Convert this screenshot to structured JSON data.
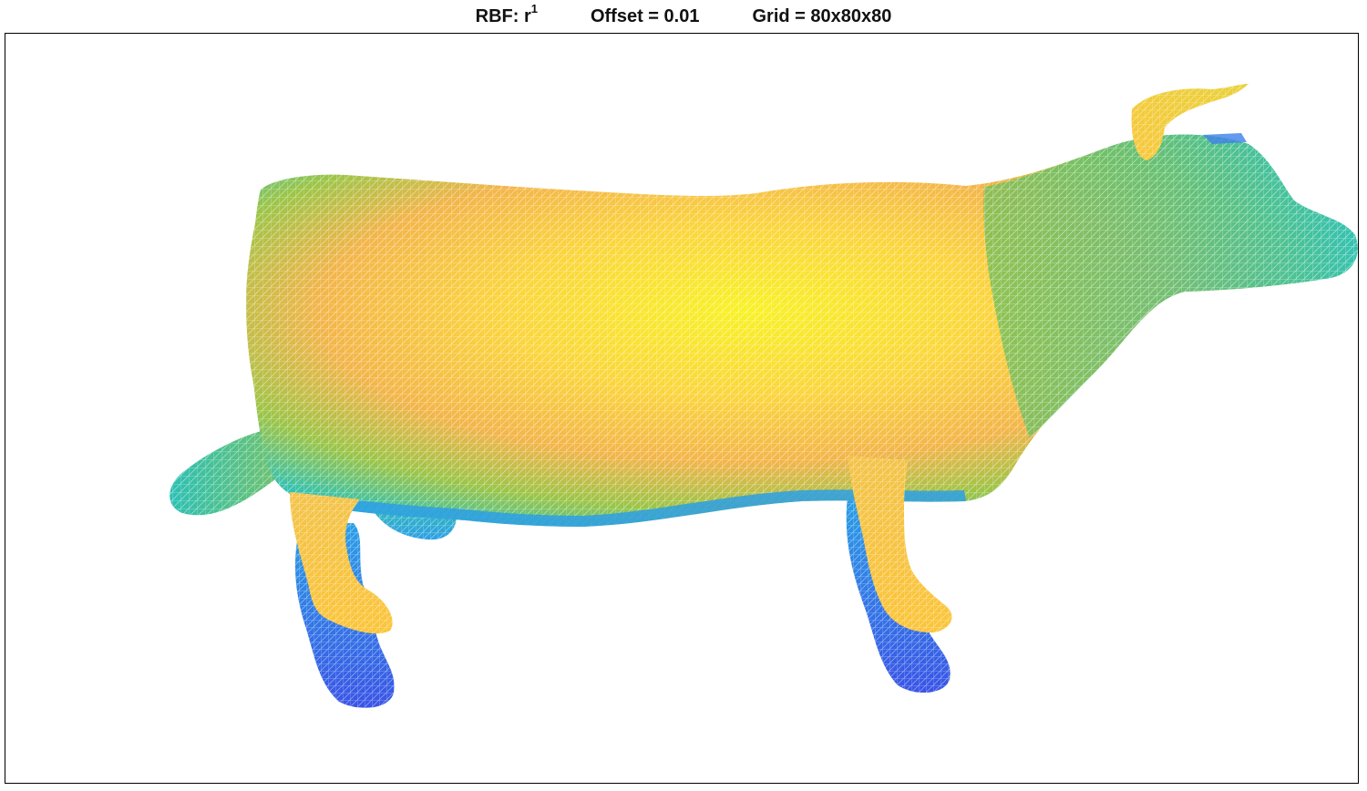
{
  "title": {
    "rbf_label": "RBF: r",
    "rbf_exponent": "1",
    "offset_label": "Offset = 0.01",
    "grid_label": "Grid = 80x80x80"
  },
  "colors": {
    "low": "#3f5fe8",
    "mid": "#2fc2b6",
    "high": "#fbc53a",
    "peak": "#f8f227"
  },
  "model": "wireframe mesh of a cow, parula-colored by height"
}
